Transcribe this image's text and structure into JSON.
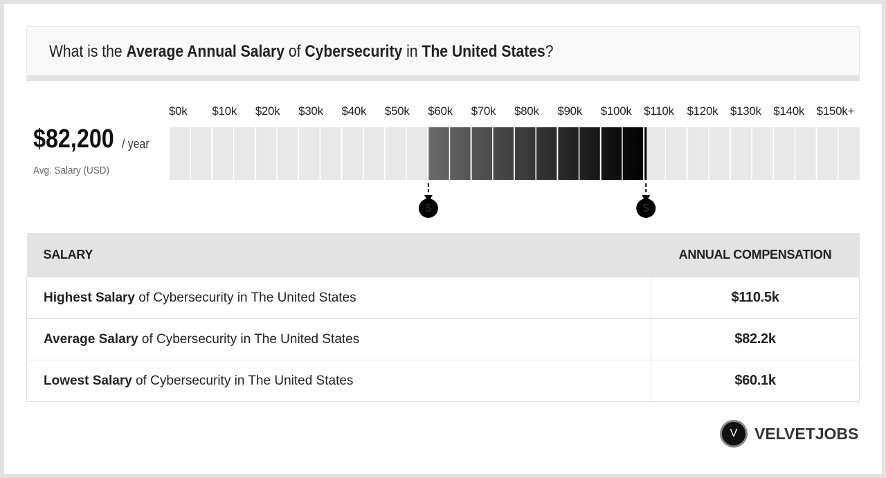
{
  "header": {
    "title": [
      {
        "text": "What is the ",
        "bold": false
      },
      {
        "text": "Average Annual Salary",
        "bold": true
      },
      {
        "text": " of ",
        "bold": false
      },
      {
        "text": "Cybersecurity",
        "bold": true
      },
      {
        "text": " in ",
        "bold": false
      },
      {
        "text": "The United States",
        "bold": true
      },
      {
        "text": "?",
        "bold": false
      }
    ]
  },
  "summary": {
    "amount": "$82,200",
    "unit": "/ year",
    "caption": "Avg. Salary (USD)"
  },
  "scale": {
    "lim": [
      0,
      160
    ],
    "ticks": [
      {
        "value": 0,
        "label": "$0k"
      },
      {
        "value": 10,
        "label": "$10k"
      },
      {
        "value": 20,
        "label": "$20k"
      },
      {
        "value": 30,
        "label": "$30k"
      },
      {
        "value": 40,
        "label": "$40k"
      },
      {
        "value": 50,
        "label": "$50k"
      },
      {
        "value": 60,
        "label": "$60k"
      },
      {
        "value": 70,
        "label": "$70k"
      },
      {
        "value": 80,
        "label": "$80k"
      },
      {
        "value": 90,
        "label": "$90k"
      },
      {
        "value": 100,
        "label": "$100k"
      },
      {
        "value": 110,
        "label": "$110k"
      },
      {
        "value": 120,
        "label": "$120k"
      },
      {
        "value": 130,
        "label": "$130k"
      },
      {
        "value": 140,
        "label": "$140k"
      },
      {
        "value": 150,
        "label": "$150k+"
      }
    ],
    "range": [
      60.1,
      110.5
    ],
    "marker_symbol": "$"
  },
  "table": {
    "headers": [
      "SALARY",
      "ANNUAL COMPENSATION"
    ],
    "rows": [
      {
        "label_bold": "Highest Salary",
        "label_rest": " of Cybersecurity in The United States",
        "value": "$110.5k"
      },
      {
        "label_bold": "Average Salary",
        "label_rest": " of Cybersecurity in The United States",
        "value": "$82.2k"
      },
      {
        "label_bold": "Lowest Salary",
        "label_rest": " of Cybersecurity in The United States",
        "value": "$60.1k"
      }
    ]
  },
  "logo": {
    "mark": "V",
    "name": "VELVETJOBS"
  }
}
